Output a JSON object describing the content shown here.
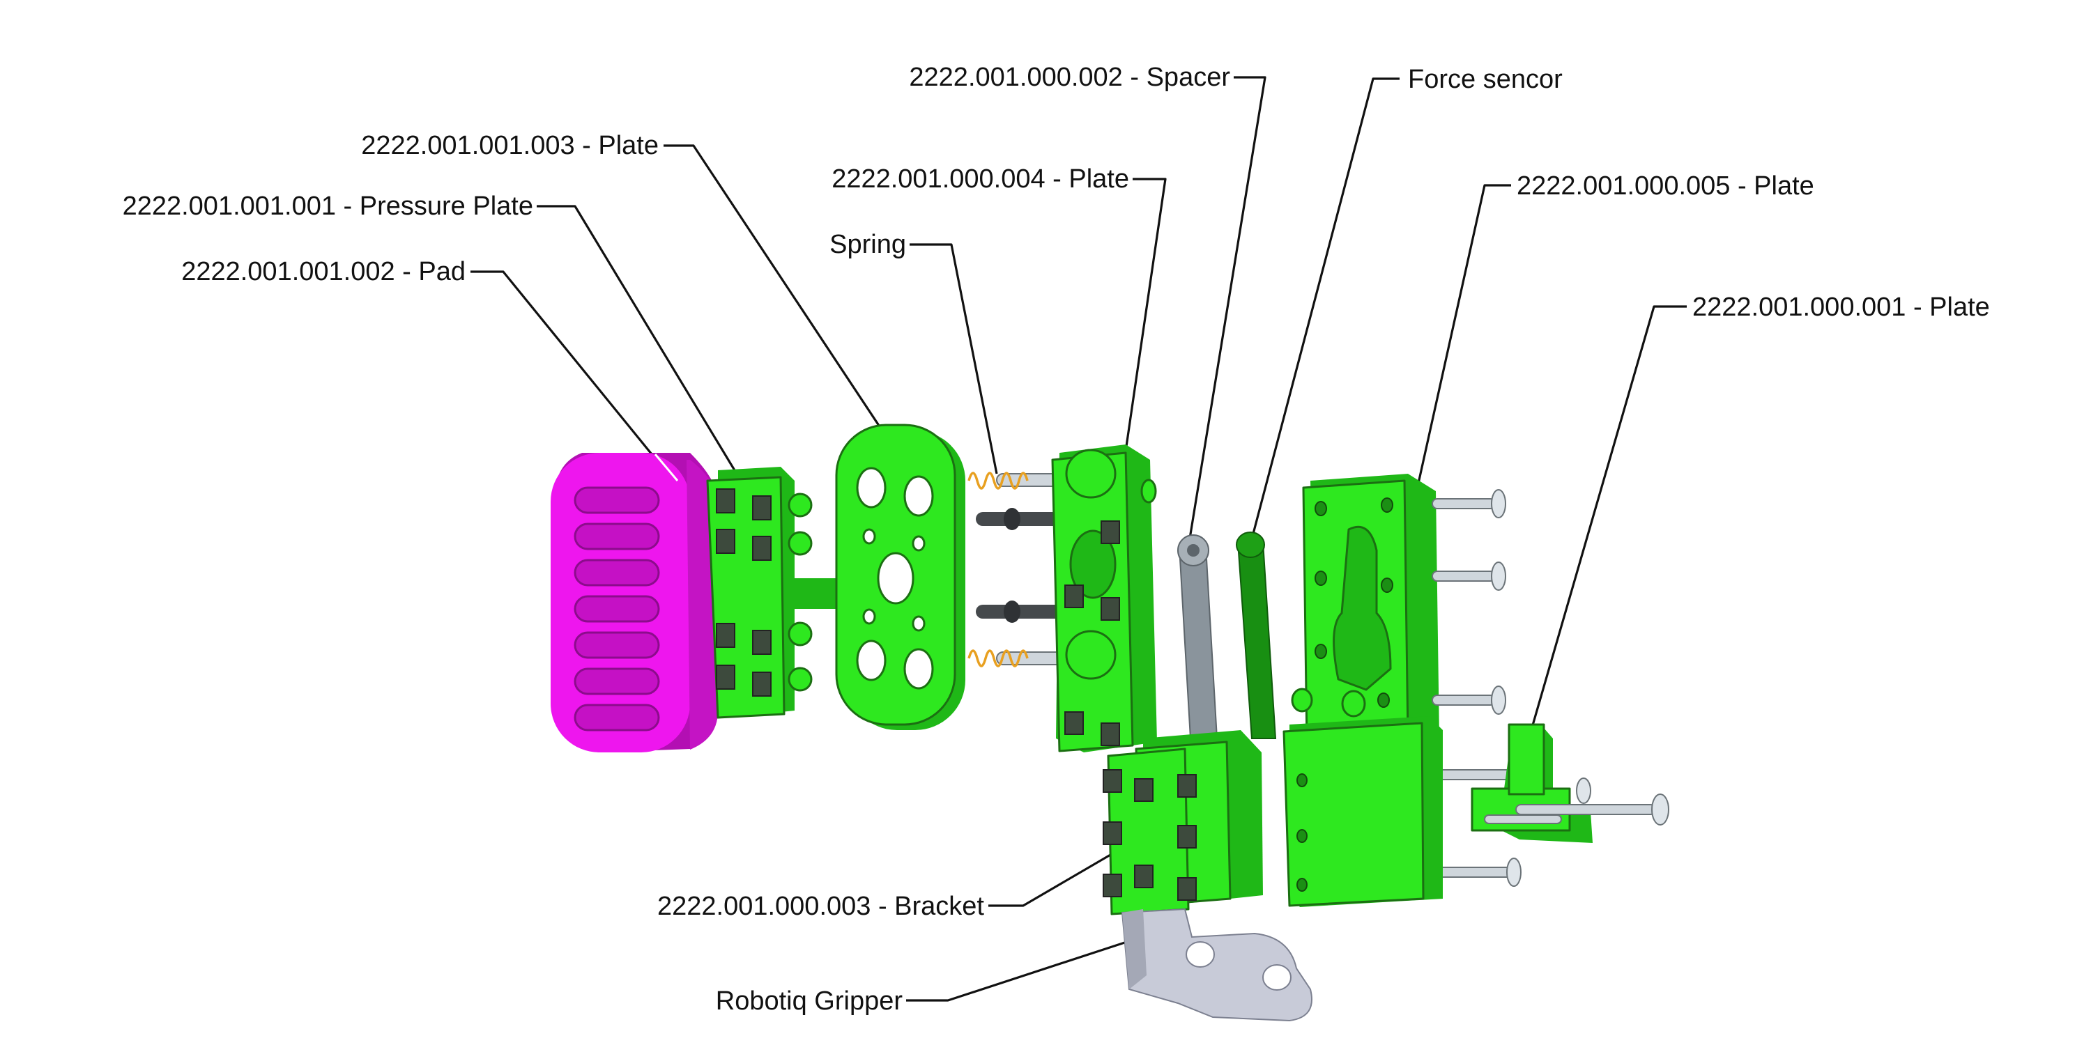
{
  "colors": {
    "green": "#2ee81f",
    "green_shadow": "#1fb817",
    "green_dark": "#15a10f",
    "pad_magenta": "#ee16ee",
    "pad_shadow": "#b30fb3",
    "spacer_gray": "#8a949c",
    "sensor_green": "#188f12",
    "gripper_gray": "#c8cbd8",
    "bolt_gray": "#cfd6dc",
    "screw_dark": "#45494c",
    "spring_orange": "#e8a020",
    "leader": "#111111"
  },
  "labels": {
    "spacer": "2222.001.000.002 - Spacer",
    "force_sensor": "Force sencor",
    "plate_003": "2222.001.001.003 - Plate",
    "plate_004": "2222.001.000.004 - Plate",
    "pressure_plate": "2222.001.001.001 - Pressure Plate",
    "plate_005": "2222.001.000.005 - Plate",
    "spring": "Spring",
    "pad": "2222.001.001.002 - Pad",
    "plate_001": "2222.001.000.001 - Plate",
    "bracket": "2222.001.000.003 - Bracket",
    "robotiq": "Robotiq Gripper"
  }
}
